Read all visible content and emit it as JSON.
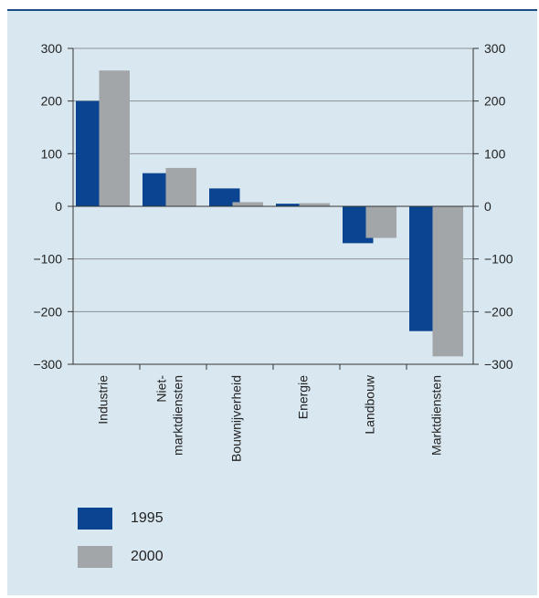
{
  "chart_data": {
    "type": "bar",
    "categories": [
      "Industrie",
      "Niet-\nmarktdiensten",
      "Bouwnijverheid",
      "Energie",
      "Landbouw",
      "Marktdiensten"
    ],
    "series": [
      {
        "name": "1995",
        "values": [
          200,
          63,
          34,
          5,
          -70,
          -237
        ],
        "color": "#0b4592"
      },
      {
        "name": "2000",
        "values": [
          258,
          73,
          8,
          6,
          -60,
          -285
        ],
        "color": "#a3a6a8"
      }
    ],
    "ylim": [
      -300,
      300
    ],
    "yticks": [
      300,
      200,
      100,
      0,
      -100,
      -200,
      -300
    ],
    "ytick_labels": [
      "300",
      "200",
      "100",
      "0",
      "−100",
      "−200",
      "−300"
    ],
    "grid": true,
    "legend_position": "bottom-left"
  },
  "legend": [
    {
      "label": "1995",
      "color": "#0b4592"
    },
    {
      "label": "2000",
      "color": "#a3a6a8"
    }
  ]
}
